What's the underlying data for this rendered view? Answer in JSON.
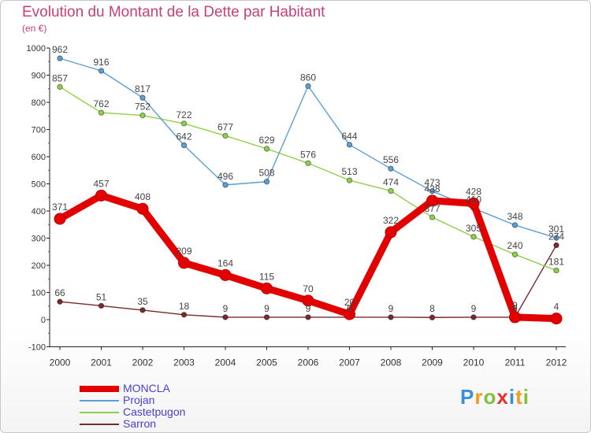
{
  "chart_data": {
    "type": "line",
    "title": "Evolution du Montant de la Dette par Habitant",
    "subtitle": "(en €)",
    "xlabel": "",
    "ylabel": "",
    "categories": [
      "2000",
      "2001",
      "2002",
      "2003",
      "2004",
      "2005",
      "2006",
      "2007",
      "2008",
      "2009",
      "2010",
      "2011",
      "2012"
    ],
    "ylim": [
      -100,
      1000
    ],
    "yticks": [
      -100,
      0,
      100,
      200,
      300,
      400,
      500,
      600,
      700,
      800,
      900,
      1000
    ],
    "grid": false,
    "legend": "bottom-left",
    "series": [
      {
        "name": "MONCLA",
        "color": "#e30000",
        "emphasis": true,
        "values": [
          371,
          457,
          408,
          209,
          164,
          115,
          70,
          20,
          322,
          438,
          428,
          9,
          4
        ]
      },
      {
        "name": "Projan",
        "color": "#5b9fd4",
        "emphasis": false,
        "values": [
          962,
          916,
          817,
          642,
          496,
          508,
          860,
          644,
          556,
          473,
          410,
          348,
          301
        ]
      },
      {
        "name": "Castetpugon",
        "color": "#90d04a",
        "emphasis": false,
        "values": [
          857,
          762,
          752,
          722,
          677,
          629,
          576,
          513,
          474,
          377,
          305,
          240,
          181
        ]
      },
      {
        "name": "Sarron",
        "color": "#7a2a2a",
        "emphasis": false,
        "values": [
          66,
          51,
          35,
          18,
          9,
          9,
          9,
          9,
          9,
          8,
          9,
          9,
          274
        ]
      }
    ]
  },
  "branding": {
    "letters": [
      "P",
      "r",
      "o",
      "x",
      "i",
      "t",
      "i"
    ],
    "colors": [
      "#3b8fd8",
      "#f39a1e",
      "#7ec13a",
      "#e8302a",
      "#3b8fd8",
      "#f39a1e",
      "#7ec13a"
    ]
  }
}
